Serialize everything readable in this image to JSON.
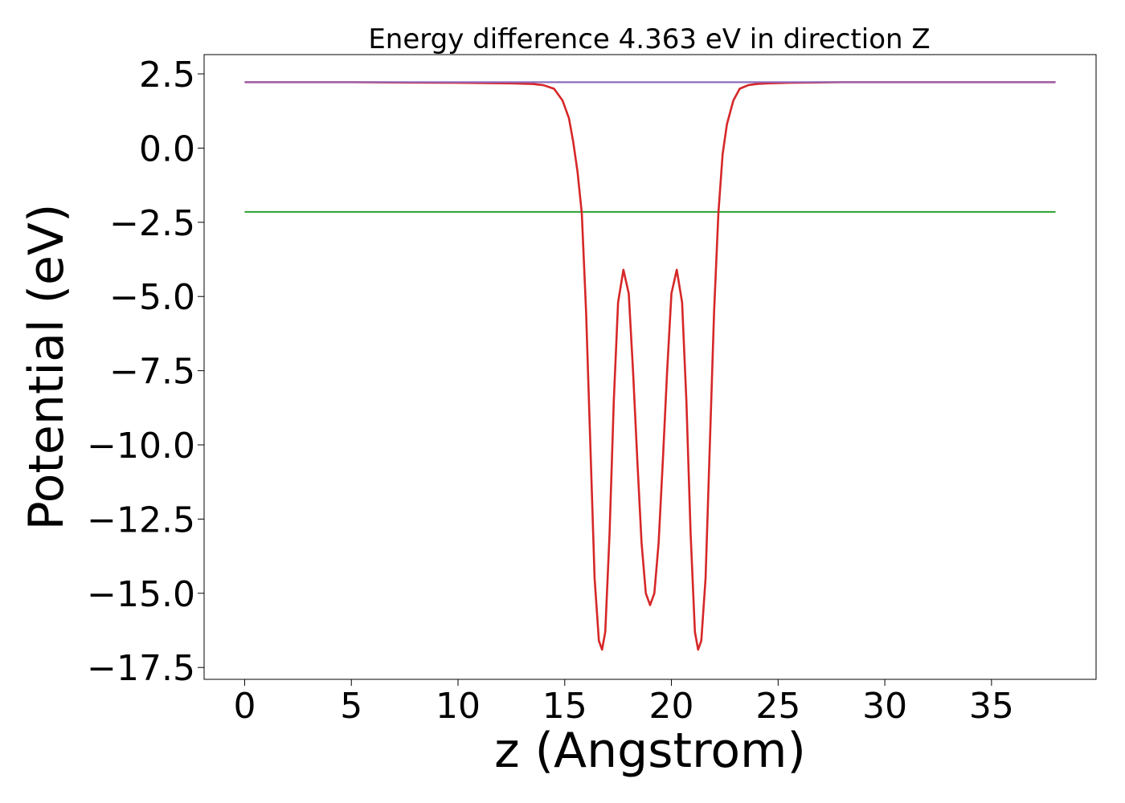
{
  "chart_data": {
    "type": "line",
    "title": "Energy difference 4.363 eV in direction Z",
    "xlabel": "z (Angstrom)",
    "ylabel": "Potential (eV)",
    "xlim": [
      -1.9,
      39.9
    ],
    "ylim": [
      -17.9,
      3.15
    ],
    "x_ticks": [
      0,
      5,
      10,
      15,
      20,
      25,
      30,
      35
    ],
    "x_tick_labels": [
      "0",
      "5",
      "10",
      "15",
      "20",
      "25",
      "30",
      "35"
    ],
    "y_ticks": [
      2.5,
      0.0,
      -2.5,
      -5.0,
      -7.5,
      -10.0,
      -12.5,
      -15.0,
      -17.5
    ],
    "y_tick_labels": [
      "2.5",
      "0.0",
      "−2.5",
      "−5.0",
      "−7.5",
      "−10.0",
      "−12.5",
      "−15.0",
      "−17.5"
    ],
    "grid": false,
    "series": [
      {
        "color": "#1f77b4",
        "x": [
          0,
          38
        ],
        "y": [
          2.22,
          2.22
        ]
      },
      {
        "color": "#2ca02c",
        "x": [
          0,
          38
        ],
        "y": [
          -2.15,
          -2.15
        ]
      },
      {
        "color": "#d62728",
        "x": [
          0,
          5,
          10,
          12.5,
          13.5,
          14.0,
          14.5,
          14.9,
          15.2,
          15.4,
          15.6,
          15.8,
          16.0,
          16.2,
          16.4,
          16.6,
          16.75,
          16.9,
          17.1,
          17.3,
          17.5,
          17.75,
          18.0,
          18.2,
          18.4,
          18.6,
          18.8,
          19.0,
          19.2,
          19.4,
          19.6,
          19.8,
          20.0,
          20.25,
          20.5,
          20.7,
          20.9,
          21.1,
          21.25,
          21.4,
          21.6,
          21.8,
          22.0,
          22.2,
          22.4,
          22.6,
          22.9,
          23.2,
          23.6,
          24.0,
          24.5,
          25.5,
          28,
          33,
          38
        ],
        "y": [
          2.22,
          2.22,
          2.2,
          2.18,
          2.16,
          2.12,
          2.0,
          1.6,
          1.0,
          0.2,
          -0.8,
          -2.2,
          -5.5,
          -10.0,
          -14.5,
          -16.6,
          -16.9,
          -16.3,
          -13.0,
          -8.5,
          -5.2,
          -4.1,
          -4.9,
          -7.5,
          -10.5,
          -13.3,
          -15.0,
          -15.4,
          -15.0,
          -13.3,
          -10.5,
          -7.5,
          -4.9,
          -4.1,
          -5.2,
          -8.5,
          -13.0,
          -16.3,
          -16.9,
          -16.6,
          -14.5,
          -10.0,
          -5.5,
          -2.2,
          -0.2,
          0.8,
          1.6,
          2.0,
          2.12,
          2.16,
          2.18,
          2.2,
          2.22,
          2.22,
          2.22
        ]
      },
      {
        "color": "#9467bd",
        "x": [
          0,
          38
        ],
        "y": [
          2.22,
          2.22
        ]
      }
    ]
  }
}
